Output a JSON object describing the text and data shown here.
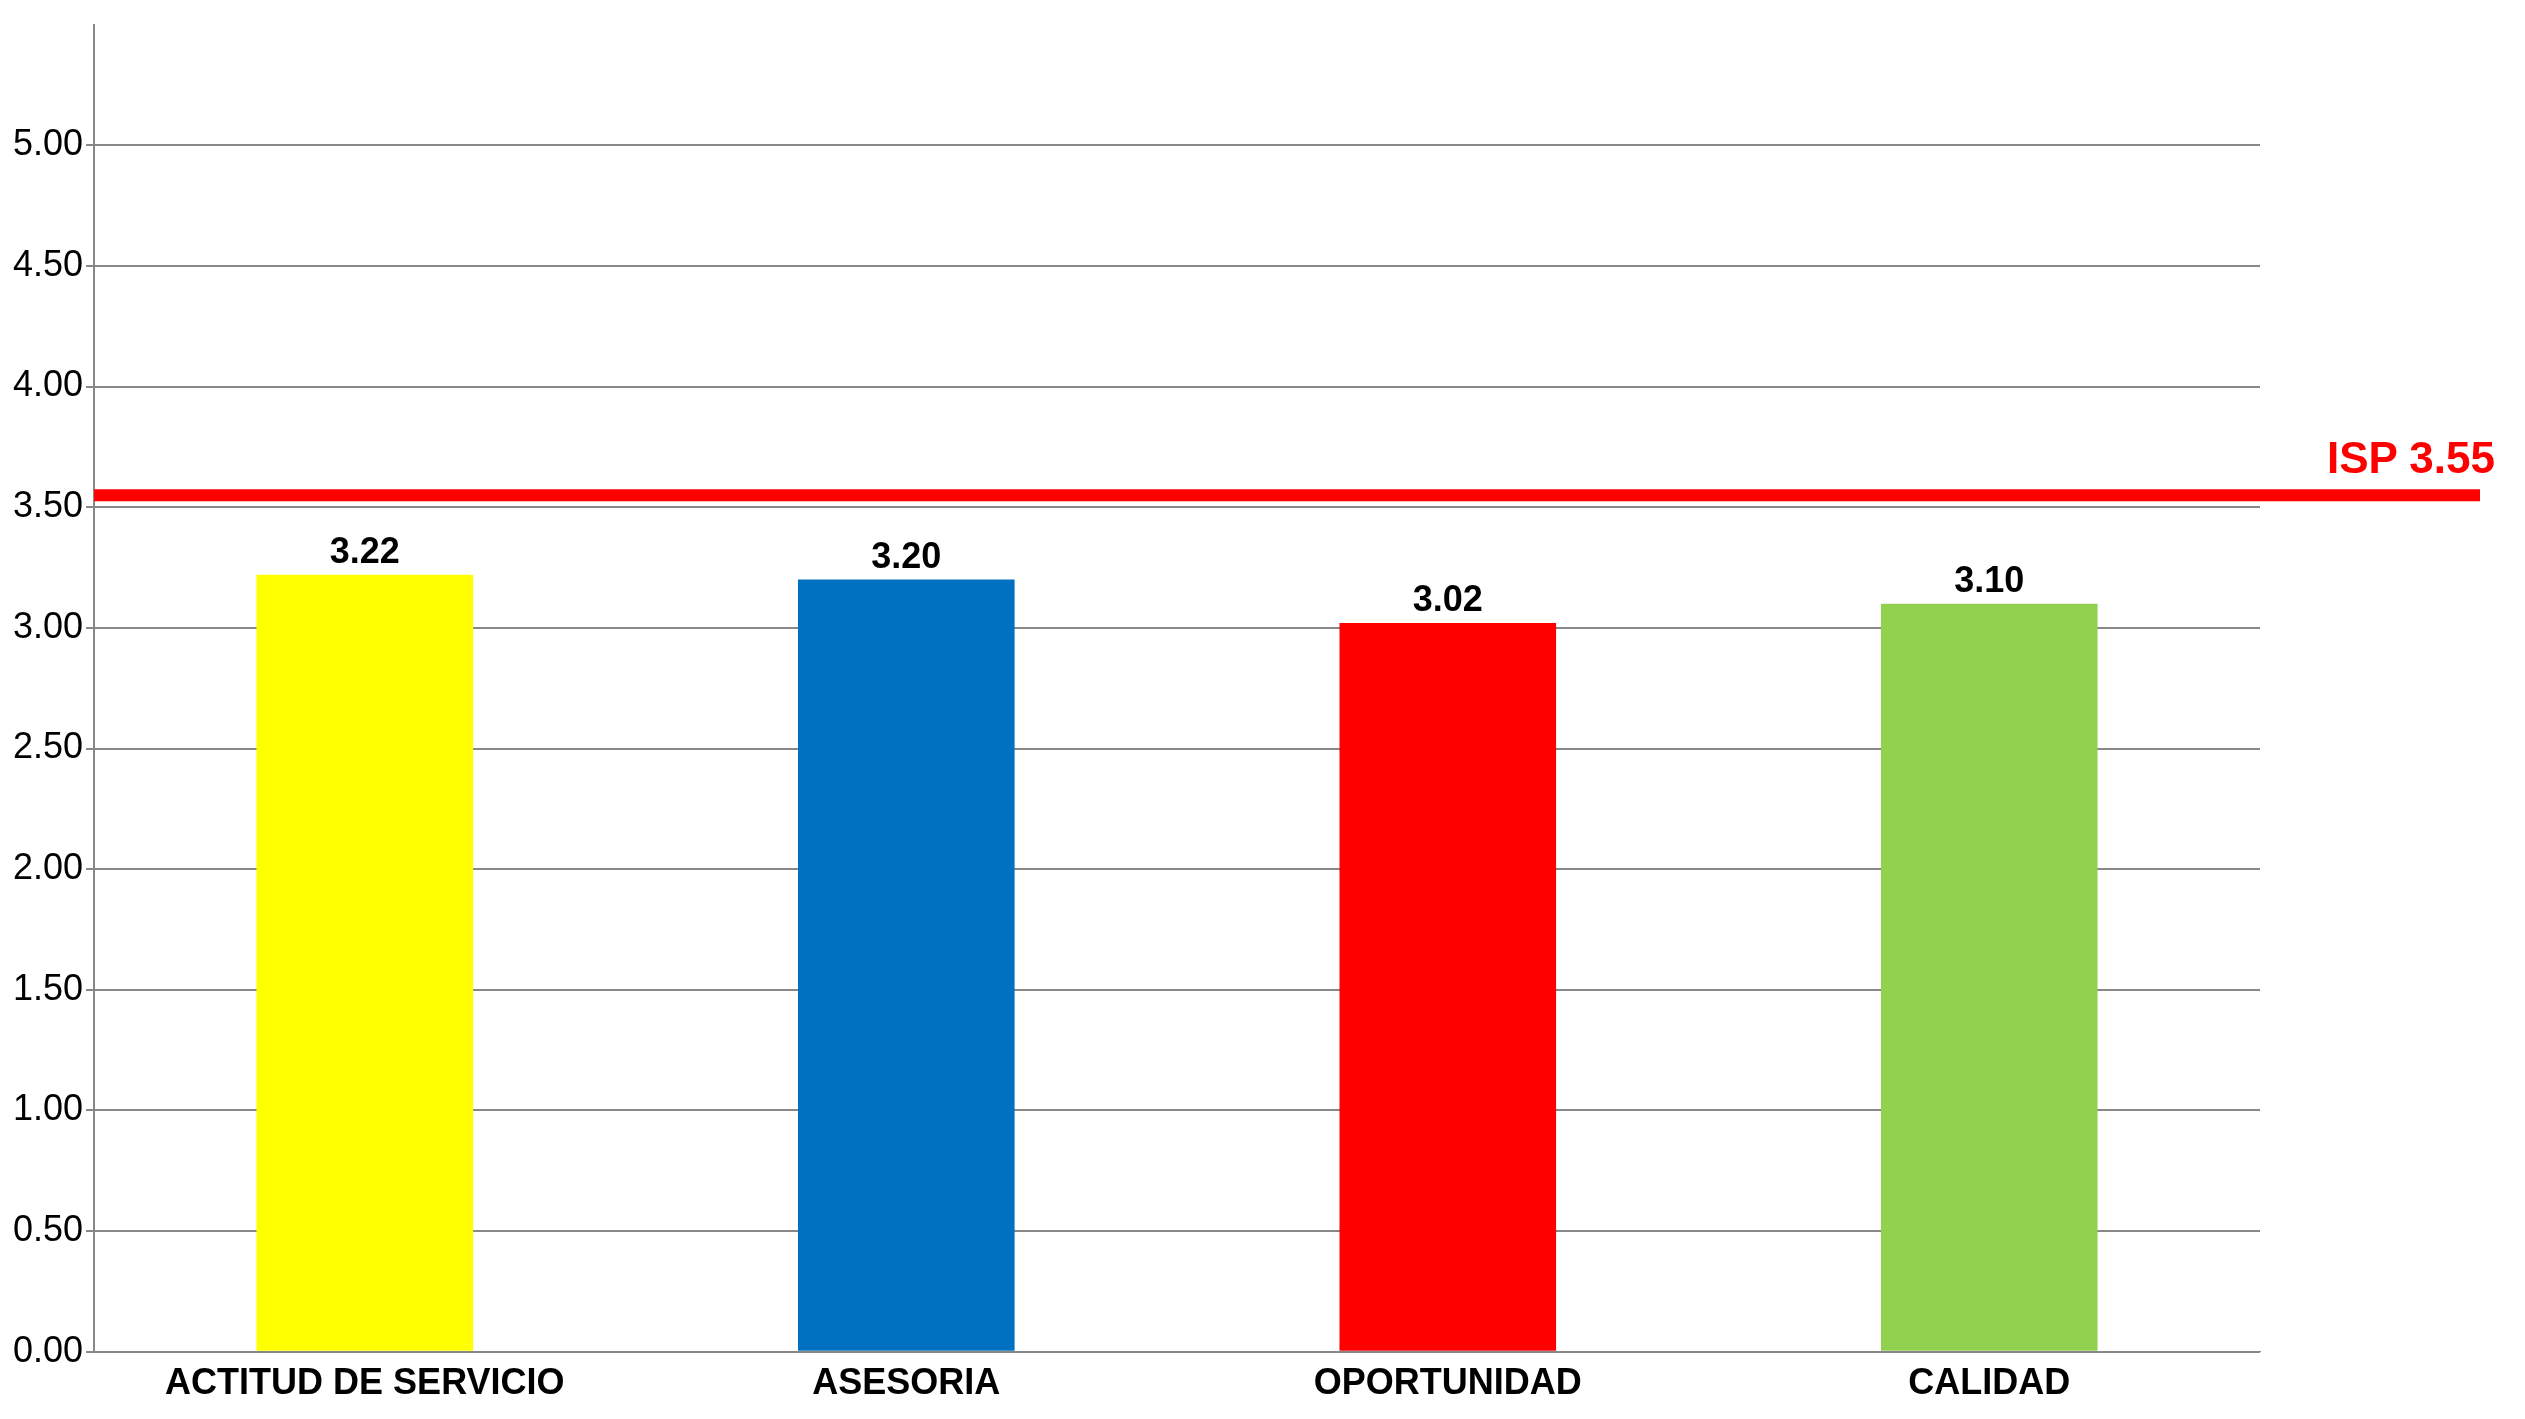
{
  "chart_data": {
    "type": "bar",
    "categories": [
      "ACTITUD DE SERVICIO",
      "ASESORIA",
      "OPORTUNIDAD",
      "CALIDAD"
    ],
    "values": [
      3.22,
      3.2,
      3.02,
      3.1
    ],
    "colors": [
      "#ffff00",
      "#0070c0",
      "#ff0000",
      "#92d050"
    ],
    "ylim": [
      0,
      5.5
    ],
    "yticks": [
      {
        "value": 0,
        "label": "0.00"
      },
      {
        "value": 0.5,
        "label": "0.50"
      },
      {
        "value": 1,
        "label": "1.00"
      },
      {
        "value": 1.5,
        "label": "1.50"
      },
      {
        "value": 2,
        "label": "2.00"
      },
      {
        "value": 2.5,
        "label": "2.50"
      },
      {
        "value": 3,
        "label": "3.00"
      },
      {
        "value": 3.5,
        "label": "3.50"
      },
      {
        "value": 4,
        "label": "4.00"
      },
      {
        "value": 4.5,
        "label": "4.50"
      },
      {
        "value": 5,
        "label": "5.00"
      }
    ],
    "grid": "y",
    "legend": false,
    "value_labels": [
      "3.22",
      "3.20",
      "3.02",
      "3.10"
    ],
    "ref_lines": [
      {
        "axis": "y",
        "value": 3.55,
        "label": "ISP 3.55",
        "color": "#ff0000"
      }
    ]
  }
}
